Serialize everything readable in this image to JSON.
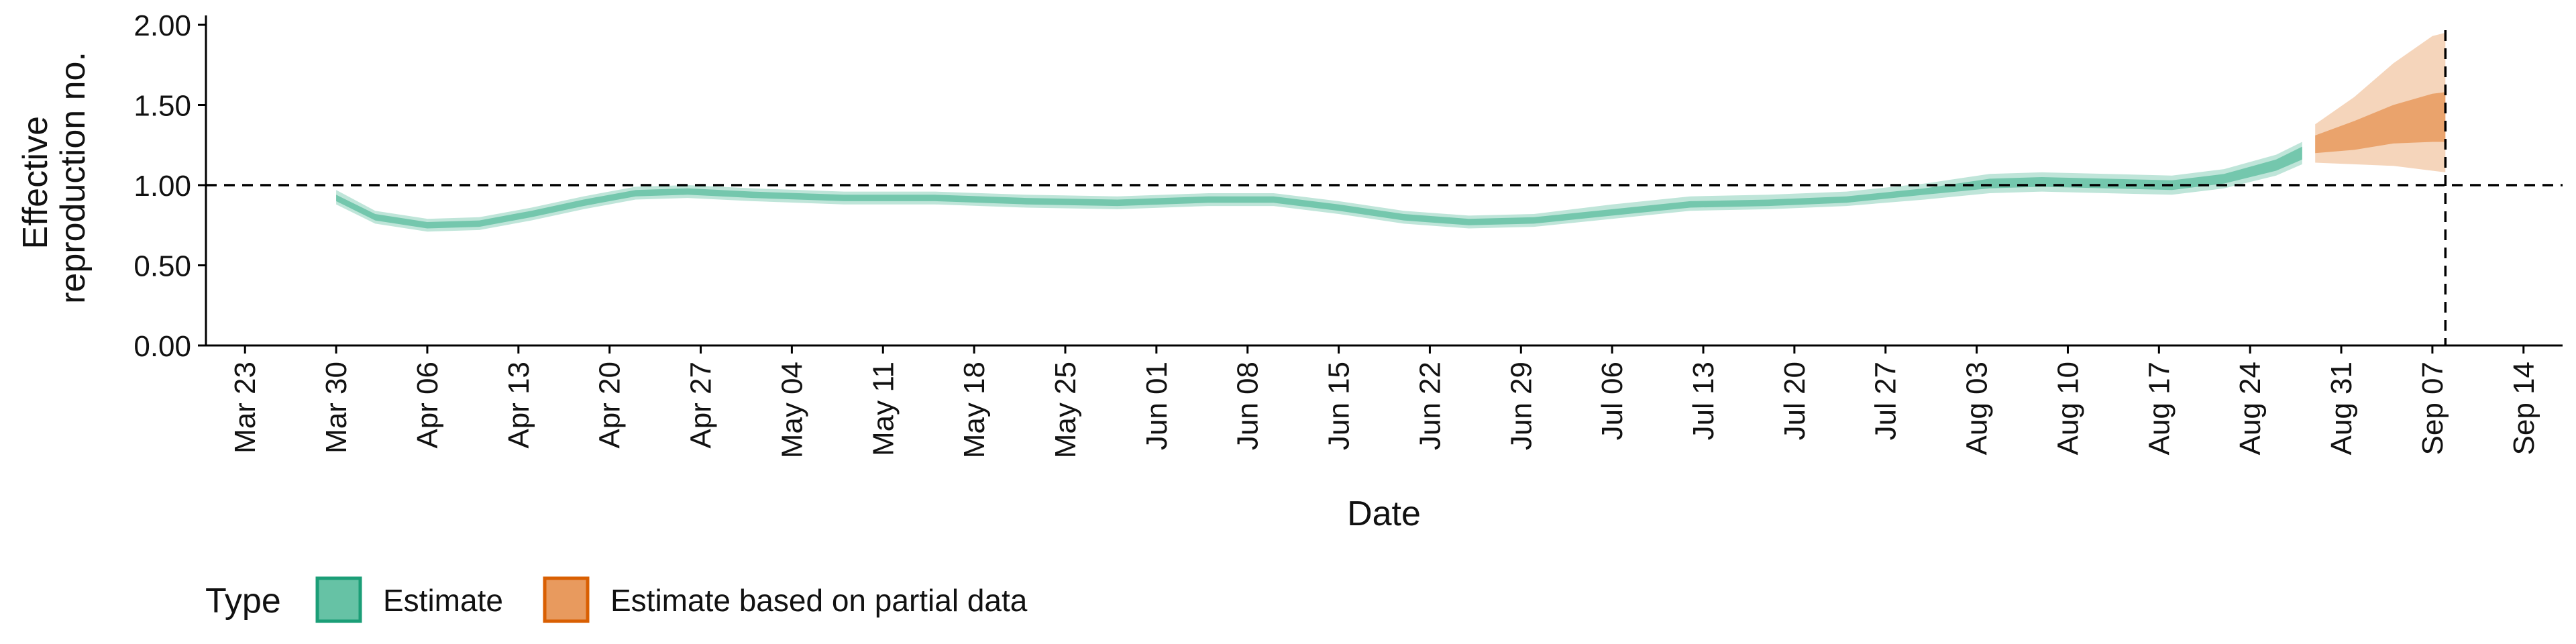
{
  "chart_data": {
    "type": "area",
    "xlabel": "Date",
    "ylabel_lines": [
      "Effective",
      "reproduction no."
    ],
    "ylim": [
      0,
      2.0
    ],
    "yticks": [
      "0.00",
      "0.50",
      "1.00",
      "1.50",
      "2.00"
    ],
    "ytick_values": [
      0,
      0.5,
      1.0,
      1.5,
      2.0
    ],
    "xlim": [
      "2020-03-20",
      "2020-09-17"
    ],
    "xticks": [
      "Mar 23",
      "Mar 30",
      "Apr 06",
      "Apr 13",
      "Apr 20",
      "Apr 27",
      "May 04",
      "May 11",
      "May 18",
      "May 25",
      "Jun 01",
      "Jun 08",
      "Jun 15",
      "Jun 22",
      "Jun 29",
      "Jul 06",
      "Jul 13",
      "Jul 20",
      "Jul 27",
      "Aug 03",
      "Aug 10",
      "Aug 17",
      "Aug 24",
      "Aug 31",
      "Sep 07",
      "Sep 14"
    ],
    "xtick_dates": [
      "2020-03-23",
      "2020-03-30",
      "2020-04-06",
      "2020-04-13",
      "2020-04-20",
      "2020-04-27",
      "2020-05-04",
      "2020-05-11",
      "2020-05-18",
      "2020-05-25",
      "2020-06-01",
      "2020-06-08",
      "2020-06-15",
      "2020-06-22",
      "2020-06-29",
      "2020-07-06",
      "2020-07-13",
      "2020-07-20",
      "2020-07-27",
      "2020-08-03",
      "2020-08-10",
      "2020-08-17",
      "2020-08-24",
      "2020-08-31",
      "2020-09-07",
      "2020-09-14"
    ],
    "reference_hline": 1.0,
    "reference_vline": "2020-09-08",
    "grid": false,
    "legend_title": "Type",
    "legend_position": "bottom-left",
    "series": [
      {
        "name": "Estimate",
        "fill_color": "#66c2a5",
        "border_color": "#1b9e77",
        "points": [
          {
            "x": "2020-03-30",
            "y": 0.92,
            "lo90": 0.88,
            "hi90": 0.97,
            "lo50": 0.9,
            "hi50": 0.94
          },
          {
            "x": "2020-04-02",
            "y": 0.8,
            "lo90": 0.76,
            "hi90": 0.84,
            "lo50": 0.78,
            "hi50": 0.82
          },
          {
            "x": "2020-04-06",
            "y": 0.75,
            "lo90": 0.71,
            "hi90": 0.79,
            "lo50": 0.73,
            "hi50": 0.77
          },
          {
            "x": "2020-04-10",
            "y": 0.76,
            "lo90": 0.72,
            "hi90": 0.8,
            "lo50": 0.74,
            "hi50": 0.78
          },
          {
            "x": "2020-04-14",
            "y": 0.82,
            "lo90": 0.78,
            "hi90": 0.86,
            "lo50": 0.8,
            "hi50": 0.84
          },
          {
            "x": "2020-04-18",
            "y": 0.89,
            "lo90": 0.85,
            "hi90": 0.93,
            "lo50": 0.87,
            "hi50": 0.91
          },
          {
            "x": "2020-04-22",
            "y": 0.95,
            "lo90": 0.91,
            "hi90": 0.99,
            "lo50": 0.93,
            "hi50": 0.97
          },
          {
            "x": "2020-04-26",
            "y": 0.96,
            "lo90": 0.92,
            "hi90": 1.0,
            "lo50": 0.94,
            "hi50": 0.98
          },
          {
            "x": "2020-05-01",
            "y": 0.94,
            "lo90": 0.9,
            "hi90": 0.98,
            "lo50": 0.92,
            "hi50": 0.96
          },
          {
            "x": "2020-05-08",
            "y": 0.92,
            "lo90": 0.88,
            "hi90": 0.96,
            "lo50": 0.9,
            "hi50": 0.94
          },
          {
            "x": "2020-05-15",
            "y": 0.92,
            "lo90": 0.88,
            "hi90": 0.96,
            "lo50": 0.9,
            "hi50": 0.94
          },
          {
            "x": "2020-05-22",
            "y": 0.9,
            "lo90": 0.86,
            "hi90": 0.94,
            "lo50": 0.88,
            "hi50": 0.92
          },
          {
            "x": "2020-05-29",
            "y": 0.89,
            "lo90": 0.85,
            "hi90": 0.93,
            "lo50": 0.87,
            "hi50": 0.91
          },
          {
            "x": "2020-06-05",
            "y": 0.91,
            "lo90": 0.87,
            "hi90": 0.95,
            "lo50": 0.89,
            "hi50": 0.93
          },
          {
            "x": "2020-06-10",
            "y": 0.91,
            "lo90": 0.87,
            "hi90": 0.95,
            "lo50": 0.89,
            "hi50": 0.93
          },
          {
            "x": "2020-06-15",
            "y": 0.86,
            "lo90": 0.82,
            "hi90": 0.9,
            "lo50": 0.84,
            "hi50": 0.88
          },
          {
            "x": "2020-06-20",
            "y": 0.8,
            "lo90": 0.76,
            "hi90": 0.84,
            "lo50": 0.78,
            "hi50": 0.82
          },
          {
            "x": "2020-06-25",
            "y": 0.77,
            "lo90": 0.73,
            "hi90": 0.81,
            "lo50": 0.75,
            "hi50": 0.79
          },
          {
            "x": "2020-06-30",
            "y": 0.78,
            "lo90": 0.74,
            "hi90": 0.82,
            "lo50": 0.76,
            "hi50": 0.8
          },
          {
            "x": "2020-07-06",
            "y": 0.83,
            "lo90": 0.79,
            "hi90": 0.88,
            "lo50": 0.81,
            "hi50": 0.85
          },
          {
            "x": "2020-07-12",
            "y": 0.88,
            "lo90": 0.84,
            "hi90": 0.93,
            "lo50": 0.86,
            "hi50": 0.9
          },
          {
            "x": "2020-07-18",
            "y": 0.89,
            "lo90": 0.85,
            "hi90": 0.94,
            "lo50": 0.87,
            "hi50": 0.91
          },
          {
            "x": "2020-07-24",
            "y": 0.91,
            "lo90": 0.87,
            "hi90": 0.96,
            "lo50": 0.89,
            "hi50": 0.93
          },
          {
            "x": "2020-07-30",
            "y": 0.96,
            "lo90": 0.91,
            "hi90": 1.01,
            "lo50": 0.94,
            "hi50": 0.98
          },
          {
            "x": "2020-08-04",
            "y": 1.01,
            "lo90": 0.95,
            "hi90": 1.07,
            "lo50": 0.98,
            "hi50": 1.04
          },
          {
            "x": "2020-08-08",
            "y": 1.02,
            "lo90": 0.96,
            "hi90": 1.08,
            "lo50": 0.99,
            "hi50": 1.05
          },
          {
            "x": "2020-08-13",
            "y": 1.01,
            "lo90": 0.95,
            "hi90": 1.07,
            "lo50": 0.98,
            "hi50": 1.04
          },
          {
            "x": "2020-08-18",
            "y": 1.0,
            "lo90": 0.94,
            "hi90": 1.06,
            "lo50": 0.97,
            "hi50": 1.03
          },
          {
            "x": "2020-08-22",
            "y": 1.04,
            "lo90": 0.98,
            "hi90": 1.1,
            "lo50": 1.01,
            "hi50": 1.07
          },
          {
            "x": "2020-08-26",
            "y": 1.12,
            "lo90": 1.06,
            "hi90": 1.19,
            "lo50": 1.09,
            "hi50": 1.16
          },
          {
            "x": "2020-08-28",
            "y": 1.2,
            "lo90": 1.13,
            "hi90": 1.27,
            "lo50": 1.16,
            "hi50": 1.24
          }
        ]
      },
      {
        "name": "Estimate based on partial data",
        "fill_color": "#e89a5e",
        "border_color": "#d95f02",
        "points": [
          {
            "x": "2020-08-29",
            "y": 1.25,
            "lo90": 1.14,
            "hi90": 1.38,
            "lo50": 1.2,
            "hi50": 1.31
          },
          {
            "x": "2020-09-01",
            "y": 1.3,
            "lo90": 1.13,
            "hi90": 1.55,
            "lo50": 1.22,
            "hi50": 1.4
          },
          {
            "x": "2020-09-04",
            "y": 1.36,
            "lo90": 1.12,
            "hi90": 1.76,
            "lo50": 1.26,
            "hi50": 1.5
          },
          {
            "x": "2020-09-07",
            "y": 1.4,
            "lo90": 1.09,
            "hi90": 1.93,
            "lo50": 1.27,
            "hi50": 1.57
          },
          {
            "x": "2020-09-08",
            "y": 1.4,
            "lo90": 1.08,
            "hi90": 1.95,
            "lo50": 1.27,
            "hi50": 1.58
          }
        ]
      }
    ]
  }
}
